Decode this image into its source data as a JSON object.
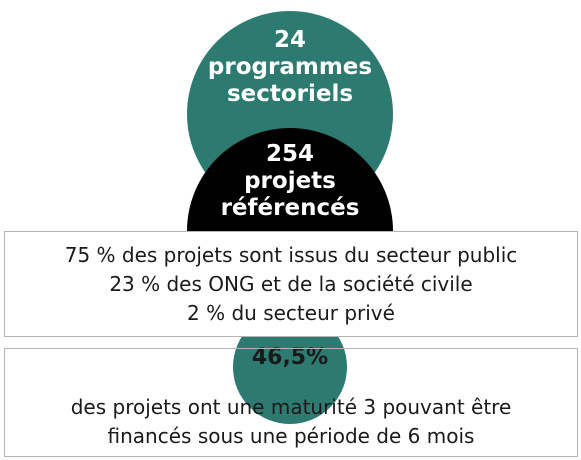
{
  "programmes": {
    "count": "24",
    "line1": "programmes",
    "line2": "sectoriels"
  },
  "projets": {
    "count": "254",
    "line1": "projets",
    "line2": "référencés"
  },
  "sectors": {
    "line1": "75 % des projets sont issus du secteur public",
    "line2": "23 % des ONG et de la société civile",
    "line3": "2 % du secteur privé"
  },
  "maturity": {
    "percent": "46,5%",
    "line1": "des projets ont une maturité 3 pouvant être",
    "line2": "financés sous une période de 6 mois"
  },
  "colors": {
    "teal": "#2c7a70",
    "black": "#000000",
    "border": "#b4b4b4"
  }
}
